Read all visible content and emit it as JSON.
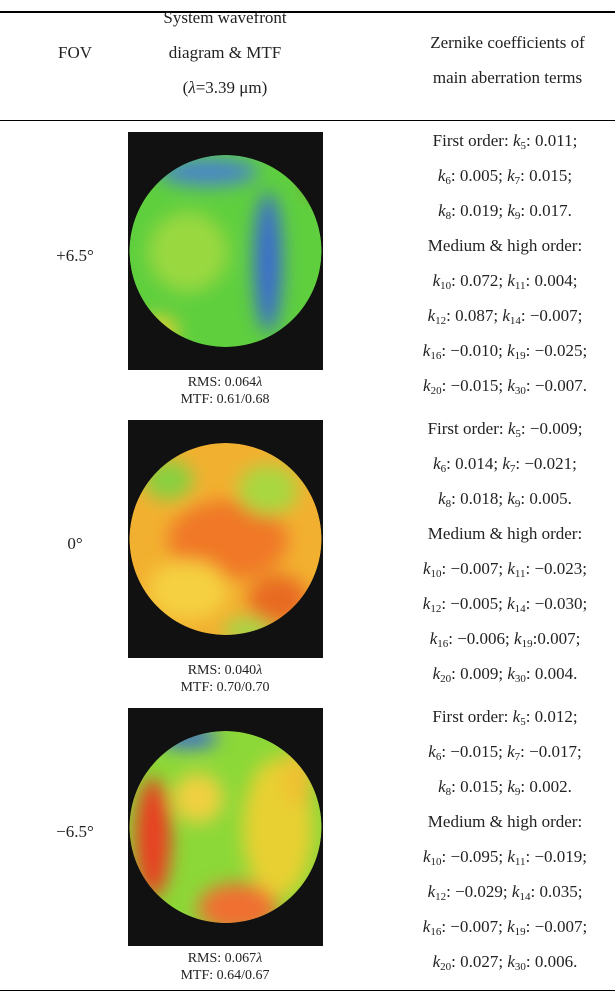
{
  "header": {
    "col1": [
      [
        "FOV"
      ]
    ],
    "col2": [
      [
        "System wavefront"
      ],
      [
        "diagram & MTF"
      ],
      [
        "(",
        {
          "i": "λ"
        },
        "=3.39 μm)"
      ]
    ],
    "col3": [
      [
        "Zernike coefficients of"
      ],
      [
        "main aberration terms"
      ]
    ]
  },
  "rows": [
    {
      "fov": "+6.5°",
      "rms": [
        "RMS: 0.064",
        {
          "i": "λ"
        }
      ],
      "mtf": "MTF: 0.61/0.68",
      "coef": [
        [
          "First order: ",
          {
            "i": "k",
            "sub": "5"
          },
          ": 0.011;"
        ],
        [
          {
            "i": "k",
            "sub": "6"
          },
          ": 0.005; ",
          {
            "i": "k",
            "sub": "7"
          },
          ": 0.015;"
        ],
        [
          {
            "i": "k",
            "sub": "8"
          },
          ": 0.019; ",
          {
            "i": "k",
            "sub": "9"
          },
          ": 0.017."
        ],
        [
          "Medium & high order:"
        ],
        [
          {
            "i": "k",
            "sub": "10"
          },
          ": 0.072; ",
          {
            "i": "k",
            "sub": "11"
          },
          ": 0.004;"
        ],
        [
          {
            "i": "k",
            "sub": "12"
          },
          ": 0.087; ",
          {
            "i": "k",
            "sub": "14"
          },
          ": −0.007;"
        ],
        [
          {
            "i": "k",
            "sub": "16"
          },
          ": −0.010; ",
          {
            "i": "k",
            "sub": "19"
          },
          ": −0.025;"
        ],
        [
          {
            "i": "k",
            "sub": "20"
          },
          ": −0.015; ",
          {
            "i": "k",
            "sub": "30"
          },
          ": −0.007."
        ]
      ]
    },
    {
      "fov": "0°",
      "rms": [
        "RMS: 0.040",
        {
          "i": "λ"
        }
      ],
      "mtf": "MTF: 0.70/0.70",
      "coef": [
        [
          "First order: ",
          {
            "i": "k",
            "sub": "5"
          },
          ": −0.009;"
        ],
        [
          {
            "i": "k",
            "sub": "6"
          },
          ": 0.014; ",
          {
            "i": "k",
            "sub": "7"
          },
          ": −0.021;"
        ],
        [
          {
            "i": "k",
            "sub": "8"
          },
          ": 0.018; ",
          {
            "i": "k",
            "sub": "9"
          },
          ": 0.005."
        ],
        [
          "Medium & high order:"
        ],
        [
          {
            "i": "k",
            "sub": "10"
          },
          ": −0.007; ",
          {
            "i": "k",
            "sub": "11"
          },
          ": −0.023;"
        ],
        [
          {
            "i": "k",
            "sub": "12"
          },
          ": −0.005; ",
          {
            "i": "k",
            "sub": "14"
          },
          ": −0.030;"
        ],
        [
          {
            "i": "k",
            "sub": "16"
          },
          ": −0.006; ",
          {
            "i": "k",
            "sub": "19"
          },
          ":0.007;"
        ],
        [
          {
            "i": "k",
            "sub": "20"
          },
          ": 0.009; ",
          {
            "i": "k",
            "sub": "30"
          },
          ": 0.004."
        ]
      ]
    },
    {
      "fov": "−6.5°",
      "rms": [
        "RMS: 0.067",
        {
          "i": "λ"
        }
      ],
      "mtf": "MTF: 0.64/0.67",
      "coef": [
        [
          "First order: ",
          {
            "i": "k",
            "sub": "5"
          },
          ": 0.012;"
        ],
        [
          {
            "i": "k",
            "sub": "6"
          },
          ": −0.015; ",
          {
            "i": "k",
            "sub": "7"
          },
          ": −0.017;"
        ],
        [
          {
            "i": "k",
            "sub": "8"
          },
          ": 0.015; ",
          {
            "i": "k",
            "sub": "9"
          },
          ": 0.002."
        ],
        [
          "Medium & high order:"
        ],
        [
          {
            "i": "k",
            "sub": "10"
          },
          ": −0.095; ",
          {
            "i": "k",
            "sub": "11"
          },
          ": −0.019;"
        ],
        [
          {
            "i": "k",
            "sub": "12"
          },
          ": −0.029; ",
          {
            "i": "k",
            "sub": "14"
          },
          ": 0.035;"
        ],
        [
          {
            "i": "k",
            "sub": "16"
          },
          ": −0.007; ",
          {
            "i": "k",
            "sub": "19"
          },
          ": −0.007;"
        ],
        [
          {
            "i": "k",
            "sub": "20"
          },
          ": 0.027; ",
          {
            "i": "k",
            "sub": "30"
          },
          ": 0.006."
        ]
      ]
    }
  ]
}
